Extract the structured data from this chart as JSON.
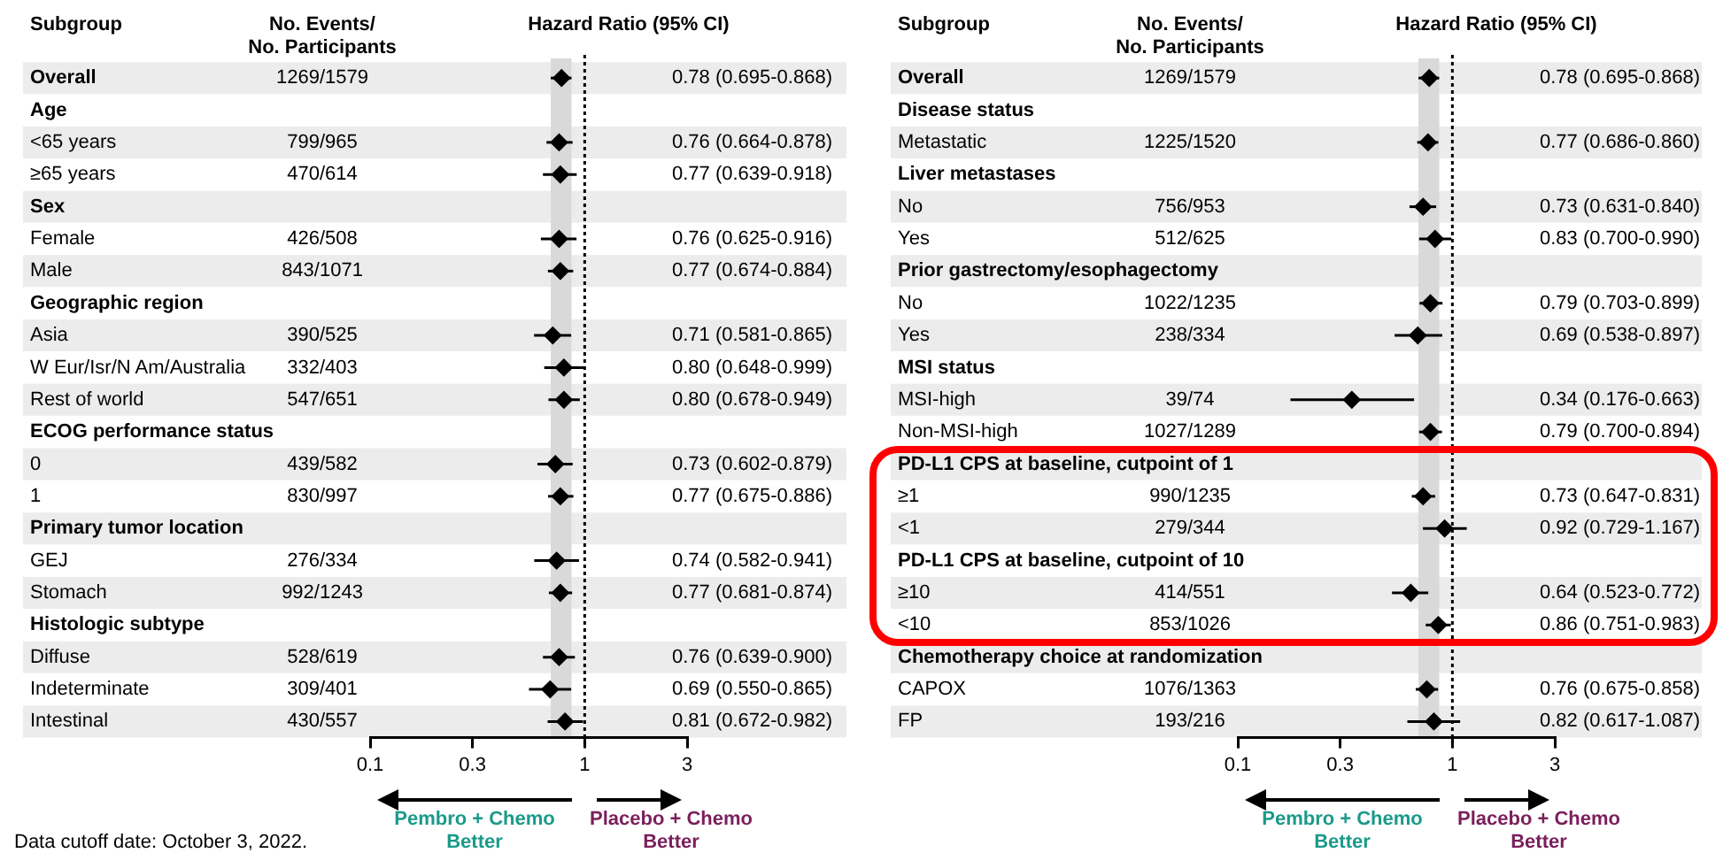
{
  "chart_data": [
    {
      "type": "scatter",
      "orientation": "horizontal",
      "log": "x",
      "grid": false,
      "legend": false,
      "marker": "diamond",
      "color": "#000000",
      "categories": [
        "Overall",
        "Age",
        "<65 years",
        "≥65 years",
        "Sex",
        "Female",
        "Male",
        "Geographic region",
        "Asia",
        "W Eur/Isr/N Am/Australia",
        "Rest of world",
        "ECOG performance status",
        "0",
        "1",
        "Primary tumor location",
        "GEJ",
        "Stomach",
        "Histologic subtype",
        "Diffuse",
        "Indeterminate",
        "Intestinal"
      ],
      "y2_categories": [
        "1269/1579",
        null,
        "799/965",
        "470/614",
        null,
        "426/508",
        "843/1071",
        null,
        "390/525",
        "332/403",
        "547/651",
        null,
        "439/582",
        "830/997",
        null,
        "276/334",
        "992/1243",
        null,
        "528/619",
        "309/401",
        "430/557"
      ],
      "values": [
        0.78,
        null,
        0.76,
        0.77,
        null,
        0.76,
        0.77,
        null,
        0.71,
        0.8,
        0.8,
        null,
        0.73,
        0.77,
        null,
        0.74,
        0.77,
        null,
        0.76,
        0.69,
        0.81
      ],
      "errors": [
        [
          0.695,
          0.868
        ],
        null,
        [
          0.664,
          0.878
        ],
        [
          0.639,
          0.918
        ],
        null,
        [
          0.625,
          0.916
        ],
        [
          0.674,
          0.884
        ],
        null,
        [
          0.581,
          0.865
        ],
        [
          0.648,
          0.999
        ],
        [
          0.678,
          0.949
        ],
        null,
        [
          0.602,
          0.879
        ],
        [
          0.675,
          0.886
        ],
        null,
        [
          0.582,
          0.941
        ],
        [
          0.681,
          0.874
        ],
        null,
        [
          0.639,
          0.9
        ],
        [
          0.55,
          0.865
        ],
        [
          0.672,
          0.982
        ]
      ],
      "value_labels": [
        "0.78 (0.695-0.868)",
        null,
        "0.76 (0.664-0.878)",
        "0.77 (0.639-0.918)",
        null,
        "0.76 (0.625-0.916)",
        "0.77 (0.674-0.884)",
        null,
        "0.71 (0.581-0.865)",
        "0.80 (0.648-0.999)",
        "0.80 (0.678-0.949)",
        null,
        "0.73 (0.602-0.879)",
        "0.77 (0.675-0.886)",
        null,
        "0.74 (0.582-0.941)",
        "0.77 (0.681-0.874)",
        null,
        "0.76 (0.639-0.900)",
        "0.69 (0.550-0.865)",
        "0.81 (0.672-0.982)"
      ],
      "xlim": [
        0.1,
        3
      ],
      "xticks": [
        0.1,
        0.3,
        1,
        3
      ],
      "bands": [
        {
          "axis": "x",
          "from": 0.695,
          "to": 0.868,
          "color": "#d9d9d9"
        }
      ],
      "ref_lines": [
        {
          "axis": "x",
          "value": 1,
          "line_style": "dotted",
          "color": "#000000"
        }
      ],
      "annotations": [
        "Subgroup",
        "No. Events/\nNo. Participants",
        "Hazard Ratio (95% CI)",
        "Pembro + Chemo\nBetter",
        "Placebo + Chemo\nBetter",
        "Data cutoff date: October 3, 2022."
      ]
    },
    {
      "type": "scatter",
      "orientation": "horizontal",
      "log": "x",
      "grid": false,
      "legend": false,
      "marker": "diamond",
      "color": "#000000",
      "categories": [
        "Overall",
        "Disease status",
        "Metastatic",
        "Liver metastases",
        "No",
        "Yes",
        "Prior gastrectomy/esophagectomy",
        "No",
        "Yes",
        "MSI status",
        "MSI-high",
        "Non-MSI-high",
        "PD-L1 CPS at baseline, cutpoint of 1",
        "≥1",
        "<1",
        "PD-L1 CPS at baseline, cutpoint of 10",
        "≥10",
        "<10",
        "Chemotherapy choice at randomization",
        "CAPOX",
        "FP"
      ],
      "y2_categories": [
        "1269/1579",
        null,
        "1225/1520",
        null,
        "756/953",
        "512/625",
        null,
        "1022/1235",
        "238/334",
        null,
        "39/74",
        "1027/1289",
        null,
        "990/1235",
        "279/344",
        null,
        "414/551",
        "853/1026",
        null,
        "1076/1363",
        "193/216"
      ],
      "values": [
        0.78,
        null,
        0.77,
        null,
        0.73,
        0.83,
        null,
        0.79,
        0.69,
        null,
        0.34,
        0.79,
        null,
        0.73,
        0.92,
        null,
        0.64,
        0.86,
        null,
        0.76,
        0.82
      ],
      "errors": [
        [
          0.695,
          0.868
        ],
        null,
        [
          0.686,
          0.86
        ],
        null,
        [
          0.631,
          0.84
        ],
        [
          0.7,
          0.99
        ],
        null,
        [
          0.703,
          0.899
        ],
        [
          0.538,
          0.897
        ],
        null,
        [
          0.176,
          0.663
        ],
        [
          0.7,
          0.894
        ],
        null,
        [
          0.647,
          0.831
        ],
        [
          0.729,
          1.167
        ],
        null,
        [
          0.523,
          0.772
        ],
        [
          0.751,
          0.983
        ],
        null,
        [
          0.675,
          0.858
        ],
        [
          0.617,
          1.087
        ]
      ],
      "value_labels": [
        "0.78 (0.695-0.868)",
        null,
        "0.77 (0.686-0.860)",
        null,
        "0.73 (0.631-0.840)",
        "0.83 (0.700-0.990)",
        null,
        "0.79 (0.703-0.899)",
        "0.69 (0.538-0.897)",
        null,
        "0.34 (0.176-0.663)",
        "0.79 (0.700-0.894)",
        null,
        "0.73 (0.647-0.831)",
        "0.92 (0.729-1.167)",
        null,
        "0.64 (0.523-0.772)",
        "0.86 (0.751-0.983)",
        null,
        "0.76 (0.675-0.858)",
        "0.82 (0.617-1.087)"
      ],
      "xlim": [
        0.1,
        3
      ],
      "xticks": [
        0.1,
        0.3,
        1,
        3
      ],
      "bands": [
        {
          "axis": "x",
          "from": 0.695,
          "to": 0.868,
          "color": "#d9d9d9"
        }
      ],
      "ref_lines": [
        {
          "axis": "x",
          "value": 1,
          "line_style": "dotted",
          "color": "#000000"
        }
      ],
      "annotations": [
        "Subgroup",
        "No. Events/\nNo. Participants",
        "Hazard Ratio (95% CI)",
        "Pembro + Chemo\nBetter",
        "Placebo + Chemo\nBetter"
      ]
    }
  ]
}
